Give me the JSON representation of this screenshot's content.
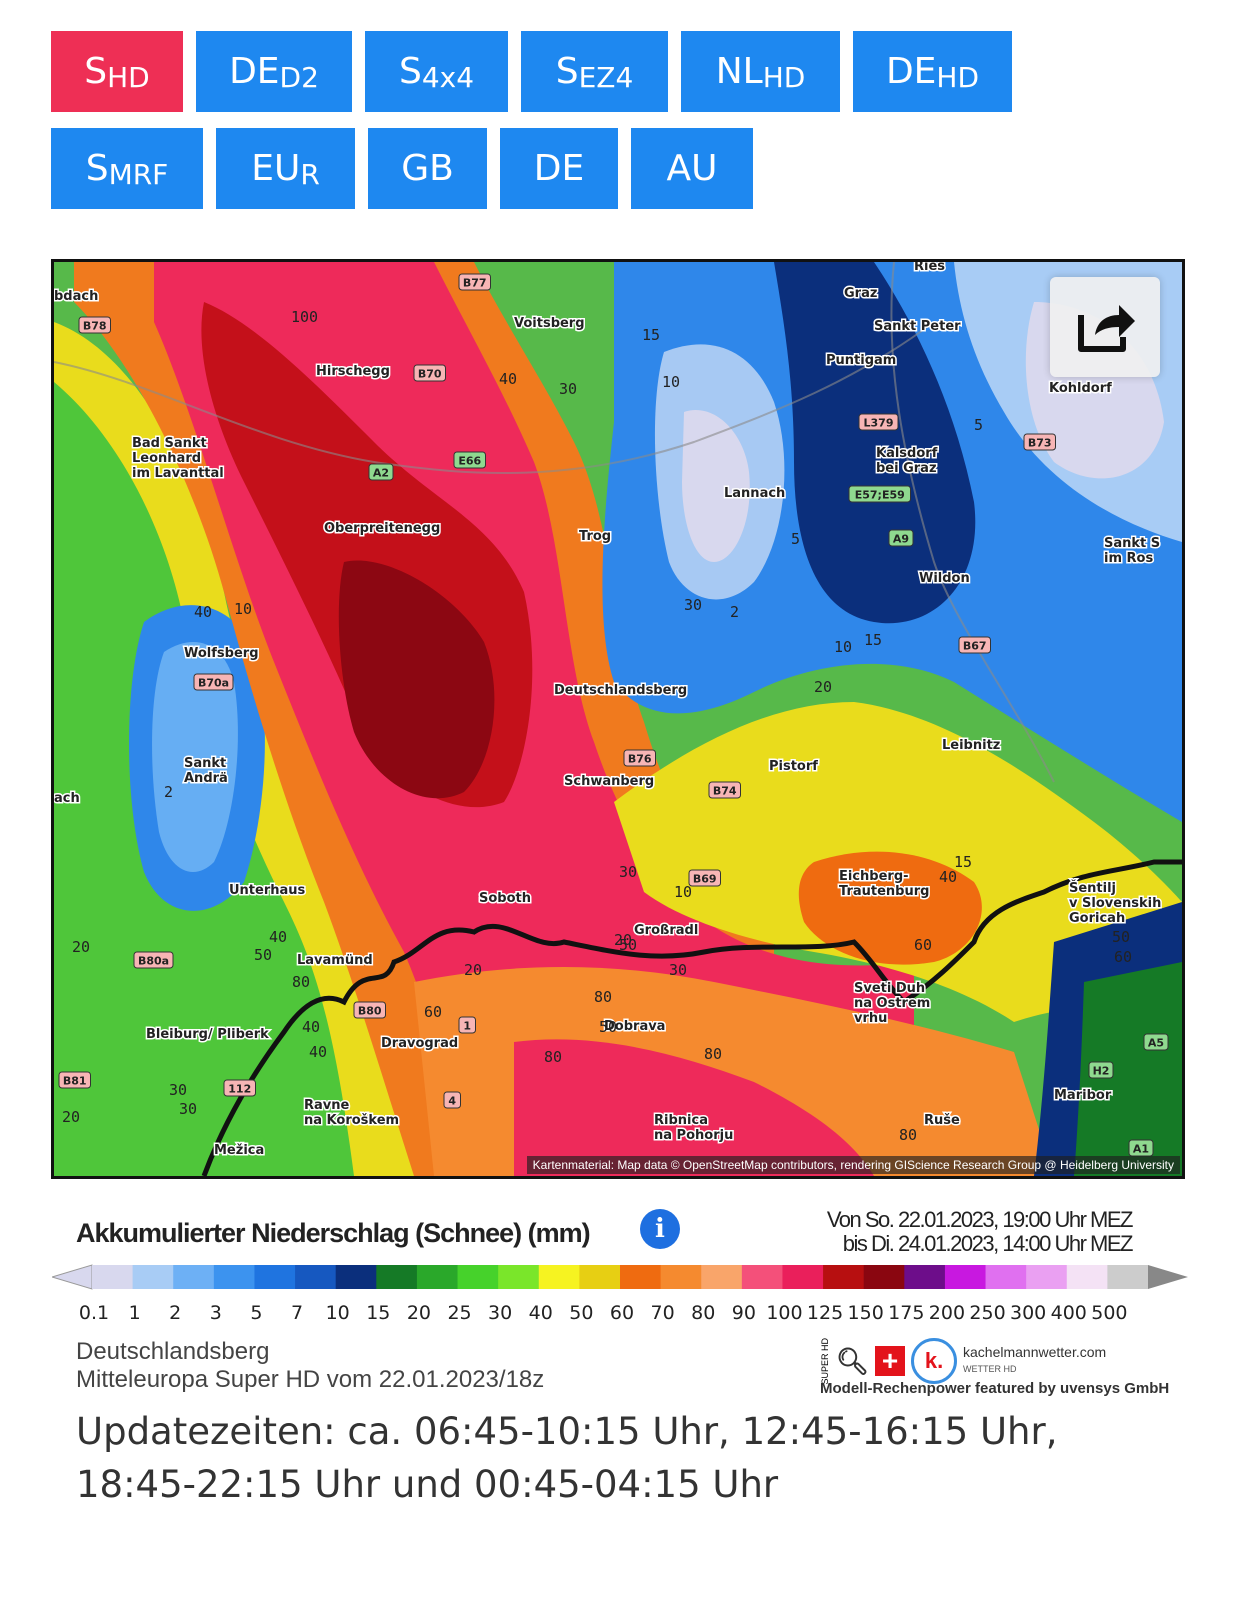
{
  "tabs": [
    {
      "main": "S",
      "sub": "HD",
      "active": true
    },
    {
      "main": "DE",
      "sub": "D2"
    },
    {
      "main": "S",
      "sub": "4x4"
    },
    {
      "main": "S",
      "sub": "EZ4"
    },
    {
      "main": "NL",
      "sub": "HD"
    },
    {
      "main": "DE",
      "sub": "HD"
    },
    {
      "main": "S",
      "sub": "MRF"
    },
    {
      "main": "EU",
      "sub": "R"
    },
    {
      "main": "GB",
      "sub": ""
    },
    {
      "main": "DE",
      "sub": ""
    },
    {
      "main": "AU",
      "sub": ""
    }
  ],
  "map": {
    "share_icon": "share-icon",
    "attribution": "Kartenmaterial: Map data © OpenStreetMap contributors, rendering GIScience Research Group @ Heidelberg University",
    "places": [
      "bdach",
      "Voitsberg",
      "Graz",
      "Sankt Peter",
      "Puntigam",
      "Hirschegg",
      "Kohldorf",
      "Bad Sankt Leonhard im Lavanttal",
      "Kalsdorf bei Graz",
      "Lannach",
      "Oberpreitenegg",
      "Trog",
      "Wildon",
      "Sankt S im Ros",
      "Wolfsberg",
      "Deutschlandsberg",
      "Leibnitz",
      "Sankt Andrä",
      "Pistorf",
      "Schwanberg",
      "ach",
      "Eichberg-Trautenburg",
      "Šentilj v Slovenskih Goricah",
      "Unterhaus",
      "Soboth",
      "Großradl",
      "Lavamünd",
      "Sveti Duh na Ostrem vrhu",
      "Bleiburg/ Pliberk",
      "Dravograd",
      "Dobrava",
      "Maribor",
      "Ravne na Koroškem",
      "Ribnica na Pohorju",
      "Ruše",
      "Mežica",
      "Ries"
    ],
    "roads": [
      "B77",
      "B78",
      "B70",
      "A2",
      "E66",
      "L379",
      "B73",
      "E57;E59",
      "A9",
      "B67",
      "B70a",
      "B76",
      "B74",
      "B69",
      "B80a",
      "B80",
      "B81",
      "112",
      "1",
      "4",
      "H2",
      "A5",
      "A1"
    ],
    "contours": [
      "100",
      "40",
      "30",
      "15",
      "10",
      "5",
      "2",
      "40",
      "10",
      "30",
      "2",
      "5",
      "10",
      "15",
      "20",
      "30",
      "10",
      "15",
      "40",
      "50",
      "40",
      "50",
      "80",
      "20",
      "20",
      "30",
      "80",
      "60",
      "50",
      "80",
      "60",
      "80",
      "50",
      "60",
      "40",
      "20",
      "30",
      "30",
      "20",
      "40",
      "80"
    ]
  },
  "legend": {
    "title": "Akkumulierter Niederschlag (Schnee) (mm)",
    "info_icon": "info-icon",
    "range_from": "Von So. 22.01.2023, 19:00 Uhr MEZ",
    "range_to": "bis Di. 24.01.2023, 14:00 Uhr MEZ",
    "values": [
      "0.1",
      "1",
      "2",
      "3",
      "5",
      "7",
      "10",
      "15",
      "20",
      "25",
      "30",
      "40",
      "50",
      "60",
      "70",
      "80",
      "90",
      "100",
      "125",
      "150",
      "175",
      "200",
      "250",
      "300",
      "400",
      "500"
    ],
    "colors": [
      "#d8d8ee",
      "#a8ccf5",
      "#6db0f5",
      "#3c93ef",
      "#1f74e0",
      "#1658c0",
      "#0b2f7c",
      "#157a26",
      "#2aa82a",
      "#46d22b",
      "#7ae62a",
      "#f6f321",
      "#e7cf13",
      "#ef6b10",
      "#f58a2f",
      "#f9a56a",
      "#f4507a",
      "#ea1f5b",
      "#b70f10",
      "#8a0610",
      "#6d0d8a",
      "#c818e0",
      "#e070f0",
      "#eaa0f2",
      "#f4e2f5",
      "#cccccc"
    ]
  },
  "location": "Deutschlandsberg",
  "model_run": "Mitteleuropa Super HD vom 22.01.2023/18z",
  "brand": {
    "super_hd": "SUPER HD",
    "site": "kachelmannwetter.com",
    "sub": "WETTER HD",
    "power": "Modell-Rechenpower featured by uvensys GmbH"
  },
  "updates": "Updatezeiten: ca. 06:45-10:15 Uhr, 12:45-16:15 Uhr, 18:45-22:15 Uhr und 00:45-04:15 Uhr"
}
